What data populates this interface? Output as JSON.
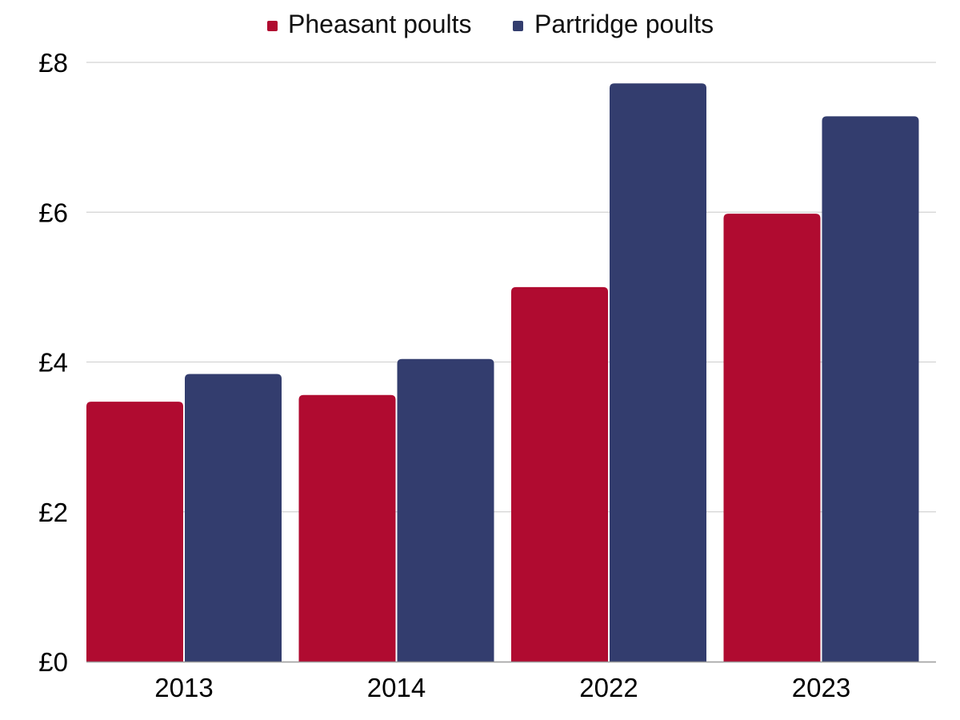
{
  "chart_data": {
    "type": "bar",
    "title": "",
    "xlabel": "",
    "ylabel": "",
    "categories": [
      "2013",
      "2014",
      "2022",
      "2023"
    ],
    "series": [
      {
        "name": "Pheasant poults",
        "color": "#b00b30",
        "values": [
          3.47,
          3.56,
          5.0,
          5.98
        ]
      },
      {
        "name": "Partridge poults",
        "color": "#333d6e",
        "values": [
          3.84,
          4.04,
          7.72,
          7.28
        ]
      }
    ],
    "ylim": [
      0,
      8
    ],
    "yticks": [
      {
        "value": 0,
        "label": "£0"
      },
      {
        "value": 2,
        "label": "£2"
      },
      {
        "value": 4,
        "label": "£4"
      },
      {
        "value": 6,
        "label": "£6"
      },
      {
        "value": 8,
        "label": "£8"
      }
    ],
    "grid": true,
    "legend_position": "top-center",
    "gridline_color": "#d3d3d3",
    "axis_color": "#9a9a9a"
  }
}
